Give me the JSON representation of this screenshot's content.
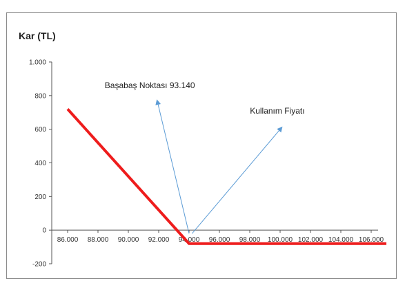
{
  "chart_data": {
    "type": "line",
    "title": "",
    "xlabel": "",
    "ylabel": "Kar (TL)",
    "xlim": [
      86000,
      106000
    ],
    "ylim": [
      -200,
      1000
    ],
    "x_ticks": [
      86000,
      88000,
      90000,
      92000,
      94000,
      96000,
      98000,
      100000,
      102000,
      104000,
      106000
    ],
    "x_tick_labels": [
      "86.000",
      "88.000",
      "90.000",
      "92.000",
      "94.000",
      "96.000",
      "98.000",
      "100.000",
      "102.000",
      "104.000",
      "106.000"
    ],
    "y_ticks": [
      -200,
      0,
      200,
      400,
      600,
      800,
      1000
    ],
    "y_tick_labels": [
      "-200",
      "0",
      "200",
      "400",
      "600",
      "800",
      "1.000"
    ],
    "grid": false,
    "series": [
      {
        "color": "#ee1c1c",
        "points": [
          [
            86000,
            720
          ],
          [
            94000,
            -80
          ],
          [
            107000,
            -80
          ]
        ]
      }
    ],
    "annotations": [
      {
        "text": "Başabaş Noktası 93.140",
        "arrow_from": [
          94000,
          -20
        ],
        "arrow_to": [
          91900,
          770
        ],
        "color": "#5b9bd5"
      },
      {
        "text": "Kullanım Fiyatı",
        "arrow_from": [
          94200,
          -20
        ],
        "arrow_to": [
          100100,
          610
        ],
        "color": "#5b9bd5"
      }
    ]
  }
}
